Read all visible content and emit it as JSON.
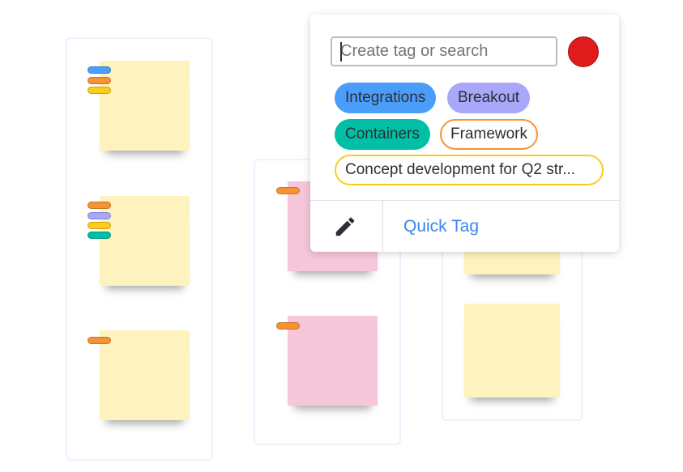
{
  "search": {
    "placeholder": "Create tag or search",
    "value": ""
  },
  "selected_color": "#e01b1b",
  "tags": [
    {
      "label": "Integrations",
      "color": "#4a9df9",
      "style": "filled"
    },
    {
      "label": "Breakout",
      "color": "#a8a7fa",
      "style": "filled"
    },
    {
      "label": "Containers",
      "color": "#00bfa5",
      "style": "filled"
    },
    {
      "label": "Framework",
      "color": "#f79233",
      "style": "outline"
    },
    {
      "label": "Concept development for Q2 str...",
      "color": "#fbcc1a",
      "style": "outline"
    }
  ],
  "footer": {
    "edit_icon": "pencil-icon",
    "quick_tag_label": "Quick Tag"
  }
}
